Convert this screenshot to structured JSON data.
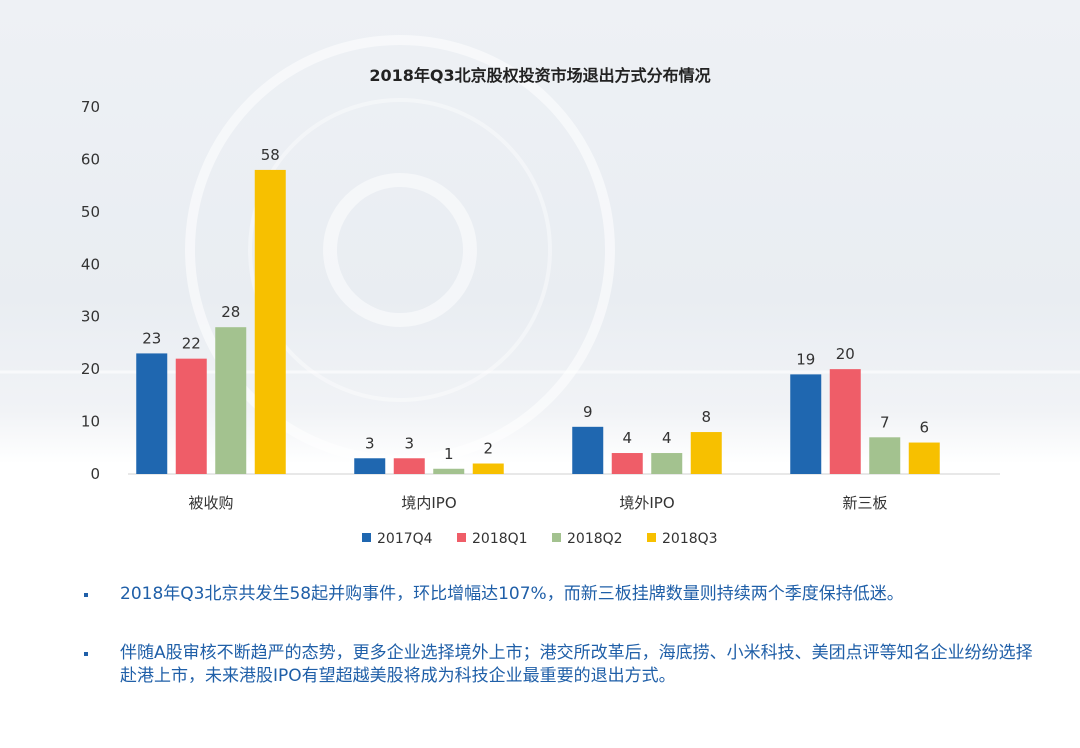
{
  "chart_data": {
    "type": "bar",
    "title": "2018年Q3北京股权投资市场退出方式分布情况",
    "categories": [
      "被收购",
      "境内IPO",
      "境外IPO",
      "新三板"
    ],
    "series": [
      {
        "name": "2017Q4",
        "color": "#1f67b0",
        "values": [
          23,
          3,
          9,
          19
        ]
      },
      {
        "name": "2018Q1",
        "color": "#ef5d68",
        "values": [
          22,
          3,
          4,
          20
        ]
      },
      {
        "name": "2018Q2",
        "color": "#a3c28f",
        "values": [
          28,
          1,
          4,
          7
        ]
      },
      {
        "name": "2018Q3",
        "color": "#f7c000",
        "values": [
          58,
          2,
          8,
          6
        ]
      }
    ],
    "ylim": [
      0,
      70
    ],
    "yticks": [
      0,
      10,
      20,
      30,
      40,
      50,
      60,
      70
    ],
    "xlabel": "",
    "ylabel": "",
    "grid": false,
    "legend": "bottom"
  },
  "notes": [
    "2018年Q3北京共发生58起并购事件，环比增幅达107%，而新三板挂牌数量则持续两个季度保持低迷。",
    "伴随A股审核不断趋严的态势，更多企业选择境外上市；港交所改革后，海底捞、小米科技、美团点评等知名企业纷纷选择赴港上市，未来港股IPO有望超越美股将成为科技企业最重要的退出方式。"
  ]
}
